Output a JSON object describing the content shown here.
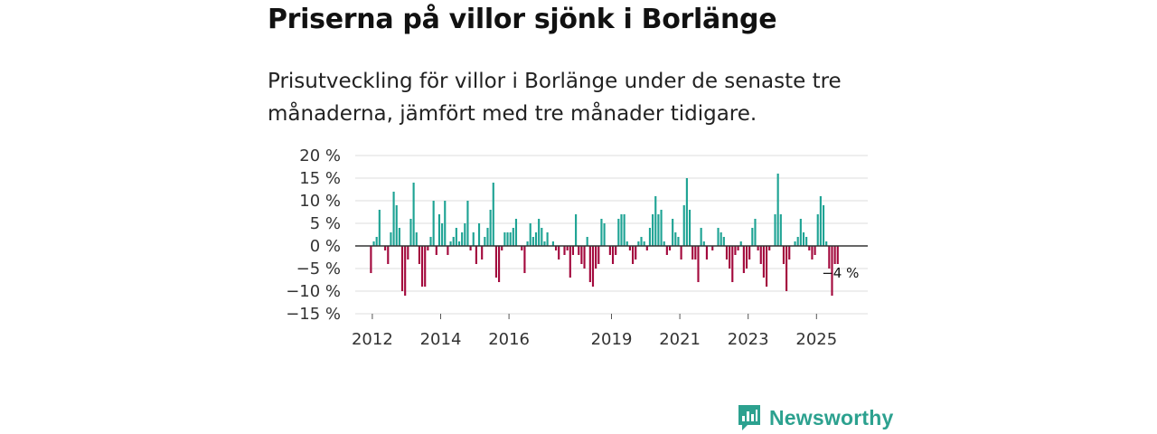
{
  "title": "Priserna på villor sjönk i Borlänge",
  "subtitle": "Prisutveckling för villor i Borlänge under de senaste tre månaderna, jämfört med tre månader tidigare.",
  "brand": {
    "name": "Newsworthy"
  },
  "colors": {
    "positive": "#1ea394",
    "negative": "#a3093d",
    "grid": "#dddddd",
    "zero": "#333333",
    "brand": "#2ca18f"
  },
  "chart_data": {
    "type": "bar",
    "title": "Priserna på villor sjönk i Borlänge",
    "xlabel": "",
    "ylabel": "",
    "ylim": [
      -15,
      20
    ],
    "yticks": [
      20,
      15,
      10,
      5,
      0,
      -5,
      -10,
      -15
    ],
    "ytick_labels": [
      "20 %",
      "15 %",
      "10 %",
      "5 %",
      "0 %",
      "−5 %",
      "−10 %",
      "−15 %"
    ],
    "xlim": [
      2011.5,
      2026.5
    ],
    "xticks": [
      2012,
      2014,
      2016,
      2019,
      2021,
      2023,
      2025
    ],
    "xtick_labels": [
      "2012",
      "2014",
      "2016",
      "2019",
      "2021",
      "2023",
      "2025"
    ],
    "last_value_label": "−4 %",
    "series": [
      {
        "name": "Prisutveckling",
        "start": 2011.96,
        "step": 0.0833,
        "values": [
          -6,
          1,
          2,
          8,
          0,
          -1,
          -4,
          3,
          12,
          9,
          4,
          -10,
          -11,
          -3,
          6,
          14,
          3,
          -4,
          -9,
          -9,
          -1,
          2,
          10,
          -2,
          7,
          5,
          10,
          -2,
          1,
          2,
          4,
          1,
          3,
          5,
          10,
          -1,
          3,
          -4,
          5,
          -3,
          2,
          4,
          8,
          14,
          -7,
          -8,
          -1,
          3,
          3,
          3,
          4,
          6,
          0,
          -1,
          -6,
          1,
          5,
          2,
          3,
          6,
          4,
          1,
          3,
          0,
          1,
          -1,
          -3,
          0,
          -2,
          -1,
          -7,
          -2,
          7,
          -2,
          -4,
          -5,
          2,
          -8,
          -9,
          -5,
          -4,
          6,
          5,
          0,
          -2,
          -4,
          -2,
          6,
          7,
          7,
          1,
          -1,
          -4,
          -3,
          1,
          2,
          1,
          -1,
          4,
          7,
          11,
          7,
          8,
          1,
          -2,
          -1,
          6,
          3,
          2,
          -3,
          9,
          15,
          8,
          -3,
          -3,
          -8,
          4,
          1,
          -3,
          0,
          -1,
          0,
          4,
          3,
          2,
          -3,
          -5,
          -8,
          -2,
          -1,
          1,
          -6,
          -5,
          -3,
          4,
          6,
          -1,
          -4,
          -7,
          -9,
          -1,
          0,
          7,
          16,
          7,
          -4,
          -10,
          -3,
          0,
          1,
          2,
          6,
          3,
          2,
          -1,
          -3,
          -2,
          7,
          11,
          9,
          1,
          -5,
          -11,
          -4,
          -4
        ]
      }
    ]
  }
}
